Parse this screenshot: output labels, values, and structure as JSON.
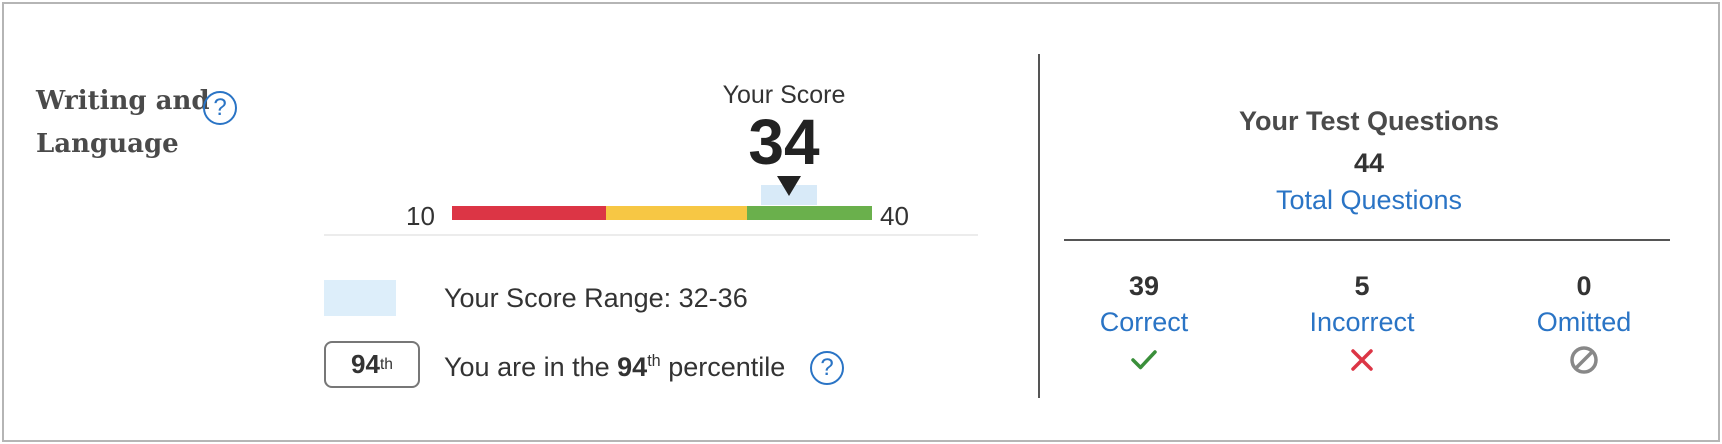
{
  "section": {
    "title": "Writing and Language",
    "help_icon": "question-circle-icon"
  },
  "score": {
    "label": "Your Score",
    "value": "34",
    "scale_min": "10",
    "scale_max": "40",
    "scale_colors": [
      "#dc3545",
      "#f7c744",
      "#6ab04c"
    ]
  },
  "legend": {
    "range_text": "Your Score Range: 32-36",
    "percentile_badge_number": "94",
    "percentile_badge_suffix": "th",
    "percentile_prefix": "You are in the ",
    "percentile_number": "94",
    "percentile_suffix": "th",
    "percentile_after": " percentile"
  },
  "test_questions": {
    "title": "Your Test Questions",
    "total": "44",
    "total_label": "Total Questions",
    "stats": [
      {
        "count": "39",
        "label": "Correct",
        "icon": "checkmark-icon",
        "color": "#3a8f3a"
      },
      {
        "count": "5",
        "label": "Incorrect",
        "icon": "x-icon",
        "color": "#dc3545"
      },
      {
        "count": "0",
        "label": "Omitted",
        "icon": "prohibited-icon",
        "color": "#888888"
      }
    ]
  }
}
